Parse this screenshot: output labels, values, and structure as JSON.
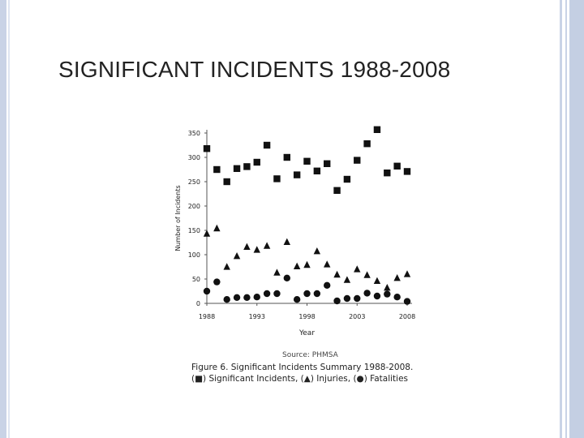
{
  "slide": {
    "title": "SIGNIFICANT INCIDENTS 1988-2008"
  },
  "figure": {
    "source": "Source: PHMSA",
    "caption_line1": "Figure 6. Significant Incidents Summary 1988-2008.",
    "caption_line2": "(■) Significant Incidents, (▲) Injuries, (●) Fatalities"
  },
  "colors": {
    "accent_bars": "#c9d3e6",
    "markers": "#111111"
  },
  "chart_data": {
    "type": "scatter",
    "title": "",
    "xlabel": "Year",
    "ylabel": "Number of Incidents",
    "xlim": [
      1988,
      2008
    ],
    "ylim": [
      0,
      350
    ],
    "x_ticks": [
      1988,
      1993,
      1998,
      2003,
      2008
    ],
    "y_ticks": [
      0,
      50,
      100,
      150,
      200,
      250,
      300,
      350
    ],
    "grid": false,
    "x": [
      1988,
      1989,
      1990,
      1991,
      1992,
      1993,
      1994,
      1995,
      1996,
      1997,
      1998,
      1999,
      2000,
      2001,
      2002,
      2003,
      2004,
      2005,
      2006,
      2007,
      2008
    ],
    "series": [
      {
        "name": "Significant Incidents",
        "marker": "square",
        "values": [
          318,
          275,
          250,
          277,
          281,
          290,
          325,
          256,
          300,
          264,
          292,
          272,
          287,
          232,
          255,
          294,
          328,
          357,
          268,
          282,
          271
        ]
      },
      {
        "name": "Injuries",
        "marker": "triangle",
        "values": [
          143,
          154,
          75,
          97,
          116,
          110,
          118,
          63,
          126,
          76,
          79,
          107,
          80,
          59,
          48,
          70,
          58,
          46,
          32,
          52,
          60
        ]
      },
      {
        "name": "Fatalities",
        "marker": "circle",
        "values": [
          25,
          44,
          8,
          12,
          12,
          13,
          20,
          20,
          52,
          8,
          20,
          20,
          37,
          5,
          10,
          10,
          21,
          15,
          19,
          13,
          4
        ]
      }
    ]
  }
}
